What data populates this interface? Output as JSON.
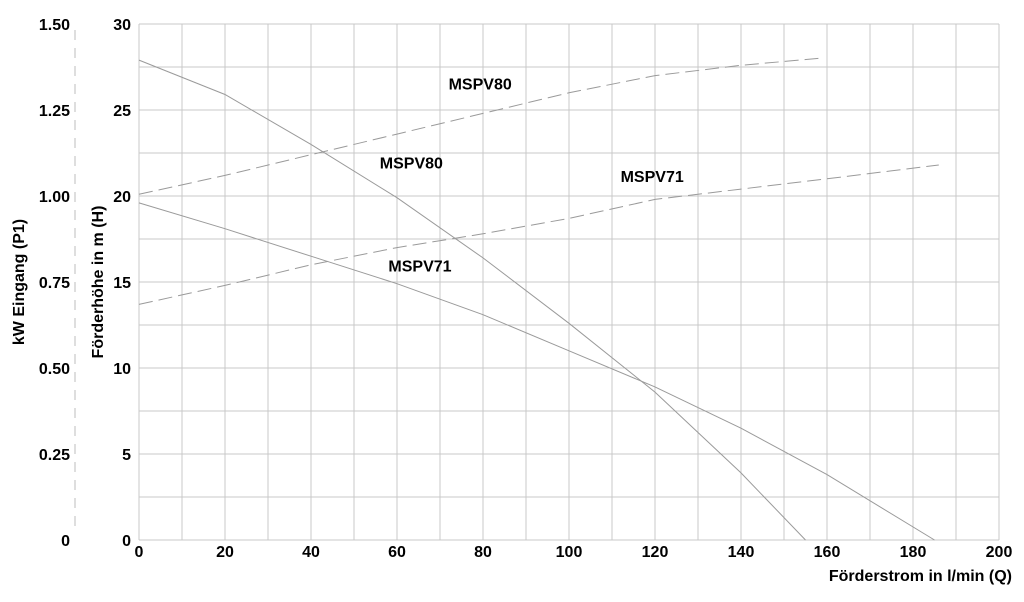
{
  "chart_data": {
    "type": "line",
    "xlabel": "Förderstrom in l/min (Q)",
    "ylabel": "Förderhöhe in m (H)",
    "y2label": "kW Eingang (P1)",
    "xlim": [
      0,
      200
    ],
    "ylim": [
      0,
      30
    ],
    "y2lim": [
      0,
      1.5
    ],
    "x_ticks": [
      "0",
      "20",
      "40",
      "60",
      "80",
      "100",
      "120",
      "140",
      "160",
      "180",
      "200"
    ],
    "y_ticks": [
      "0",
      "5",
      "10",
      "15",
      "20",
      "25",
      "30"
    ],
    "y2_ticks": [
      "0",
      "0.25",
      "0.50",
      "0.75",
      "1.00",
      "1.25",
      "1.50"
    ],
    "grid": true,
    "series": [
      {
        "name": "MSPV80",
        "kind": "head",
        "axis": "H",
        "style": "solid",
        "x": [
          0,
          20,
          40,
          60,
          80,
          100,
          120,
          140,
          155
        ],
        "y": [
          27.9,
          25.9,
          23.0,
          19.9,
          16.4,
          12.6,
          8.6,
          3.9,
          0
        ]
      },
      {
        "name": "MSPV71",
        "kind": "head",
        "axis": "H",
        "style": "solid",
        "x": [
          0,
          20,
          40,
          60,
          80,
          100,
          120,
          140,
          160,
          185
        ],
        "y": [
          19.6,
          18.1,
          16.5,
          14.9,
          13.1,
          11.0,
          8.9,
          6.5,
          3.8,
          0
        ]
      },
      {
        "name": "MSPV80",
        "kind": "power",
        "axis": "P1",
        "style": "dashed",
        "x": [
          0,
          20,
          40,
          60,
          80,
          100,
          120,
          140,
          158
        ],
        "y": [
          1.005,
          1.06,
          1.12,
          1.18,
          1.24,
          1.3,
          1.35,
          1.38,
          1.4
        ]
      },
      {
        "name": "MSPV71",
        "kind": "power",
        "axis": "P1",
        "style": "dashed",
        "x": [
          0,
          20,
          40,
          60,
          80,
          100,
          120,
          140,
          160,
          186
        ],
        "y": [
          0.685,
          0.74,
          0.8,
          0.85,
          0.89,
          0.935,
          0.99,
          1.02,
          1.05,
          1.09
        ]
      }
    ],
    "annotations": [
      {
        "text": "MSPV80",
        "refers_to": "power"
      },
      {
        "text": "MSPV80",
        "refers_to": "head"
      },
      {
        "text": "MSPV71",
        "refers_to": "power"
      },
      {
        "text": "MSPV71",
        "refers_to": "head"
      }
    ]
  }
}
